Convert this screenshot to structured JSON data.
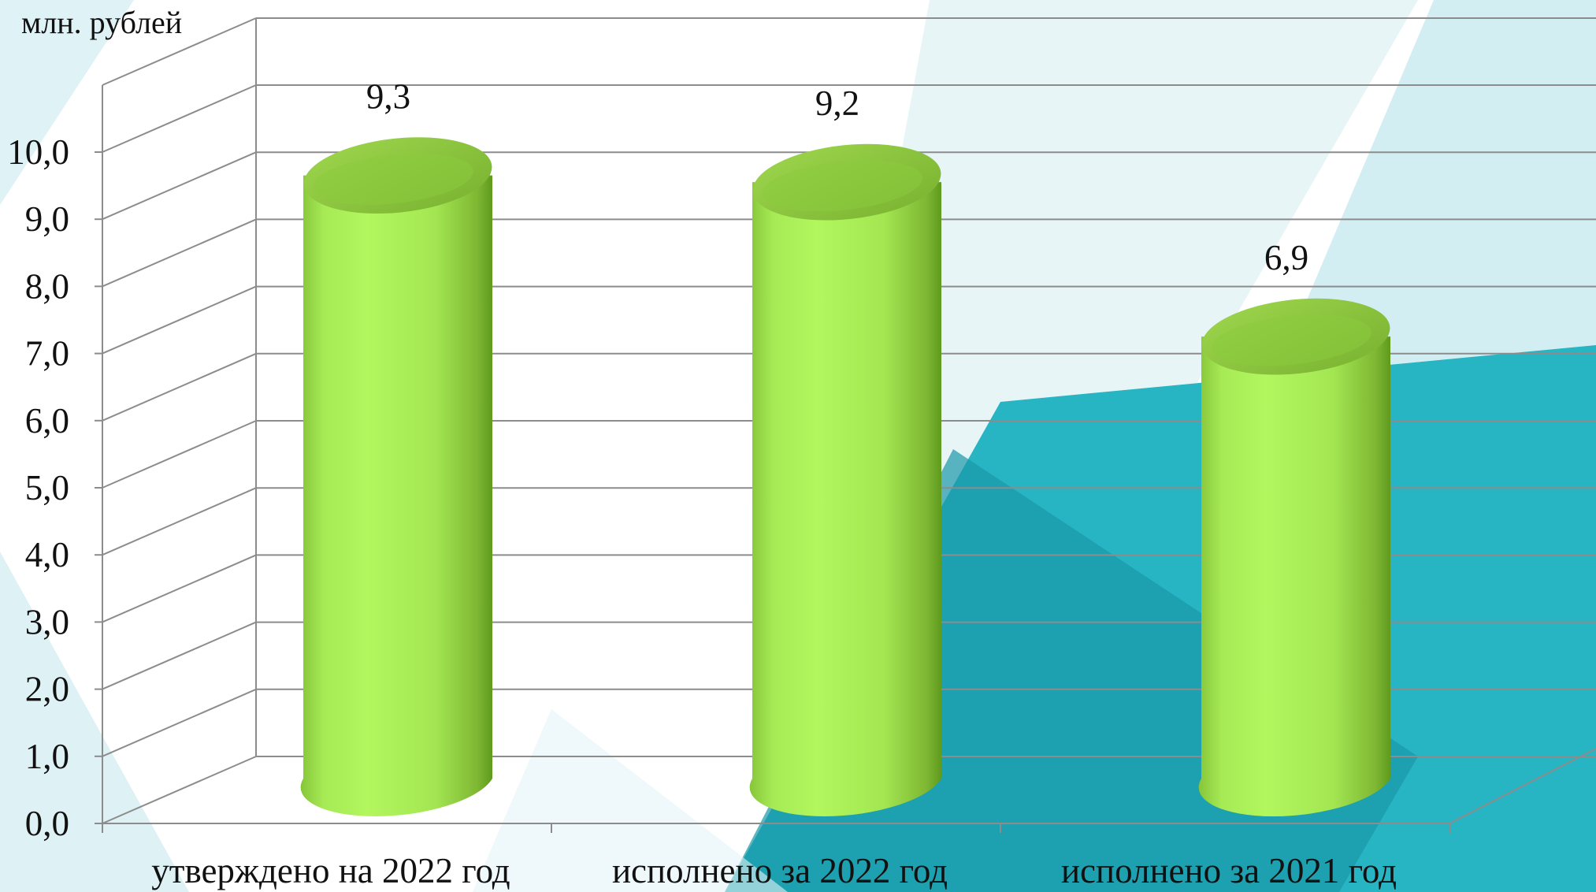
{
  "chart_data": {
    "type": "bar",
    "style": "3d-cylinder",
    "unit_label": "млн. рублей",
    "categories": [
      "утверждено на 2022 год",
      "исполнено за 2022 год",
      "исполнено за 2021 год"
    ],
    "values": [
      9.3,
      9.2,
      6.9
    ],
    "value_labels": [
      "9,3",
      "9,2",
      "6,9"
    ],
    "y_ticks": [
      "0,0",
      "1,0",
      "2,0",
      "3,0",
      "4,0",
      "5,0",
      "6,0",
      "7,0",
      "8,0",
      "9,0",
      "10,0"
    ],
    "ylim": [
      0,
      10
    ],
    "grid": true,
    "colors": {
      "bar_light": "#b0f55a",
      "bar_mid": "#8fd23a",
      "bar_dark": "#5f9a1e",
      "bar_top": "#8ec93c",
      "grid": "#8c8c8c",
      "teal": "#24b2c2",
      "teal_dark": "#168d9c",
      "teal_light": "#b9e3ea"
    }
  }
}
